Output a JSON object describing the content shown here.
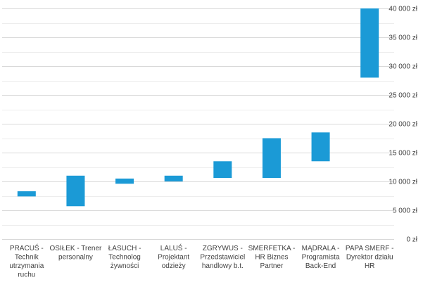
{
  "chart_data": {
    "type": "bar",
    "subtype": "floating-range",
    "categories": [
      [
        "PRACUŚ -",
        "Technik",
        "utrzymania",
        "ruchu"
      ],
      [
        "OSIŁEK - Trener",
        "personalny"
      ],
      [
        "ŁASUCH -",
        "Technolog",
        "żywności"
      ],
      [
        "LALUŚ -",
        "Projektant",
        "odzieży"
      ],
      [
        "ZGRYWUS -",
        "Przedstawiciel",
        "handlowy b.t."
      ],
      [
        "SMERFETKA -",
        "HR Biznes",
        "Partner"
      ],
      [
        "MĄDRALA -",
        "Programista",
        "Back-End"
      ],
      [
        "PAPA SMERF -",
        "Dyrektor działu",
        "HR"
      ]
    ],
    "series": [
      {
        "low": [
          7400,
          5700,
          9600,
          10000,
          10600,
          10600,
          13500,
          28000
        ],
        "high": [
          8300,
          11000,
          10500,
          11000,
          13500,
          17500,
          18500,
          40000
        ]
      }
    ],
    "y_axis": {
      "min": 0,
      "max": 40000,
      "step": 5000,
      "position": "right",
      "tick_labels": [
        "0 zł",
        "5 000 zł",
        "10 000 zł",
        "15 000 zł",
        "20 000 zł",
        "25 000 zł",
        "30 000 zł",
        "35 000 zł",
        "40 000 zł"
      ]
    },
    "minor_gridlines_per_major": 2,
    "grid": true,
    "title": "",
    "xlabel": "",
    "ylabel": "",
    "colors": {
      "bar": "#1b9ad6",
      "grid": "#d9d9d9",
      "minor_grid": "#ededed",
      "text": "#404040"
    }
  }
}
